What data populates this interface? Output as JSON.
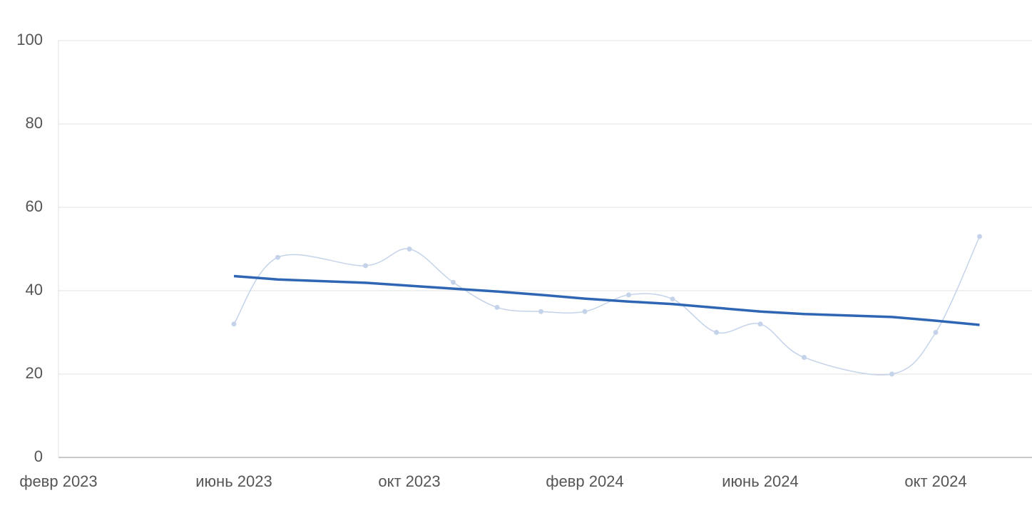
{
  "chart_data": {
    "type": "line",
    "x": [
      "2023-06",
      "2023-07",
      "2023-09",
      "2023-10",
      "2023-11",
      "2023-12",
      "2024-01",
      "2024-02",
      "2024-03",
      "2024-04",
      "2024-05",
      "2024-06",
      "2024-07",
      "2024-09",
      "2024-10",
      "2024-11"
    ],
    "series": [
      {
        "color": "#c5d3ea",
        "smooth": true,
        "markers": true,
        "values": [
          32,
          48,
          46,
          50,
          42,
          36,
          35,
          35,
          39,
          38,
          30,
          32,
          24,
          20,
          30,
          53
        ]
      },
      {
        "color": "#2f66b3",
        "smooth": false,
        "markers": false,
        "values": [
          43.5,
          42.7,
          41.9,
          41.2,
          40.5,
          39.8,
          39,
          38.1,
          37.4,
          36.8,
          35.9,
          35,
          34.4,
          33.7,
          32.8,
          31.8
        ]
      }
    ],
    "xlim": [
      "2023-02",
      "2024-12"
    ],
    "xticks": [
      {
        "value": "2023-02",
        "label": "февр 2023"
      },
      {
        "value": "2023-06",
        "label": "июнь 2023"
      },
      {
        "value": "2023-10",
        "label": "окт 2023"
      },
      {
        "value": "2024-02",
        "label": "февр 2024"
      },
      {
        "value": "2024-06",
        "label": "июнь 2024"
      },
      {
        "value": "2024-10",
        "label": "окт 2024"
      }
    ],
    "ylim": [
      0,
      100
    ],
    "yticks": [
      0,
      20,
      40,
      60,
      80,
      100
    ],
    "grid": true
  }
}
